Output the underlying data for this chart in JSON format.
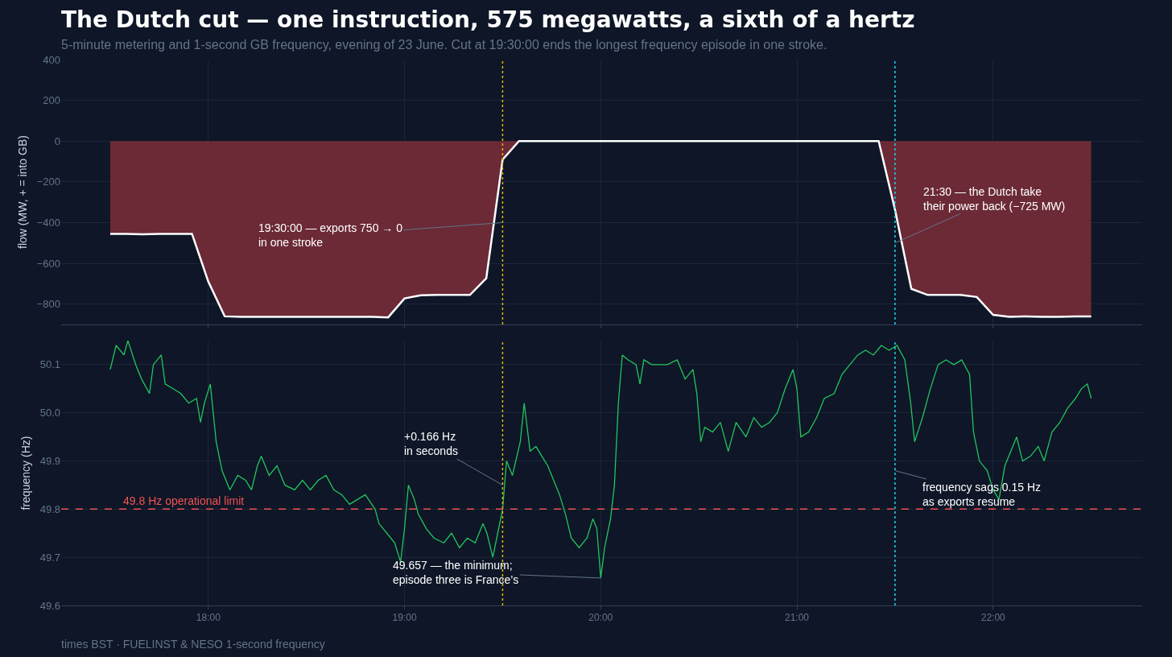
{
  "chart_data": [
    {
      "type": "area",
      "title": "The Dutch cut — one instruction, 575 megawatts, a sixth of a hertz",
      "subtitle": "5-minute metering and 1-second GB frequency, evening of 23 June. Cut at 19:30:00 ends the longest frequency episode in one stroke.",
      "ylabel": "flow (MW, + = into GB)",
      "x": [
        17.5,
        17.5833,
        17.6667,
        17.75,
        17.8333,
        17.9167,
        18.0,
        18.0833,
        18.1667,
        18.25,
        18.3333,
        18.4167,
        18.5,
        18.5833,
        18.6667,
        18.75,
        18.8333,
        18.9167,
        19.0,
        19.0833,
        19.1667,
        19.25,
        19.3333,
        19.4167,
        19.5,
        19.5833,
        19.6667,
        19.75,
        19.8333,
        19.9167,
        20.0,
        20.0833,
        20.1667,
        20.25,
        20.3333,
        20.4167,
        20.5,
        20.5833,
        20.6667,
        20.75,
        20.8333,
        20.9167,
        21.0,
        21.0833,
        21.1667,
        21.25,
        21.3333,
        21.4167,
        21.5,
        21.5833,
        21.6667,
        21.75,
        21.8333,
        21.9167,
        22.0,
        22.0833,
        22.1667,
        22.25,
        22.3333,
        22.4167,
        22.5
      ],
      "series": [
        {
          "color": "#6b2a36",
          "values": [
            -455,
            -455,
            -457,
            -455,
            -455,
            -455,
            -690,
            -860,
            -862,
            -862,
            -862,
            -862,
            -862,
            -862,
            -862,
            -862,
            -862,
            -865,
            -772,
            -757,
            -755,
            -755,
            -755,
            -673,
            -91,
            0,
            0,
            0,
            0,
            0,
            0,
            0,
            0,
            0,
            0,
            0,
            0,
            0,
            0,
            0,
            0,
            0,
            0,
            0,
            0,
            0,
            0,
            0,
            -337,
            -725,
            -755,
            -755,
            -755,
            -765,
            -853,
            -862,
            -860,
            -862,
            -862,
            -860,
            -860
          ]
        }
      ],
      "xlim": [
        17.25,
        22.76
      ],
      "xticks": [
        {
          "value": 18,
          "label": null
        },
        {
          "value": 19,
          "label": null
        },
        {
          "value": 20,
          "label": null
        },
        {
          "value": 21,
          "label": null
        },
        {
          "value": 22,
          "label": null
        }
      ],
      "ylim": [
        -900,
        400
      ],
      "yticks": [
        {
          "value": -800,
          "label": "−800"
        },
        {
          "value": -600,
          "label": "−600"
        },
        {
          "value": -400,
          "label": "−400"
        },
        {
          "value": -200,
          "label": "−200"
        },
        0,
        200,
        400
      ],
      "ref_lines": [
        {
          "axis": "x",
          "value": 19.5,
          "color": "#eab308",
          "line_style": "dotted"
        },
        {
          "axis": "x",
          "value": 21.5,
          "color": "#22d3ee",
          "line_style": "dotted"
        }
      ],
      "annotations": [
        {
          "text": "19:30:00 — exports 750 → 0\nin one stroke",
          "x": 19.5,
          "y": -400
        },
        {
          "text": "21:30 — the Dutch take\ntheir power back (−725 MW)",
          "x": 21.5,
          "y": -500
        }
      ],
      "grid": true,
      "tick_labels": "y"
    },
    {
      "type": "line",
      "ylabel": "frequency (Hz)",
      "x": [
        17.5,
        17.53,
        17.57,
        17.59,
        17.63,
        17.66,
        17.7,
        17.72,
        17.76,
        17.78,
        17.82,
        17.86,
        17.9,
        17.94,
        17.96,
        17.98,
        18.01,
        18.04,
        18.07,
        18.11,
        18.15,
        18.19,
        18.22,
        18.25,
        18.27,
        18.31,
        18.35,
        18.39,
        18.44,
        18.48,
        18.52,
        18.56,
        18.6,
        18.64,
        18.68,
        18.72,
        18.76,
        18.8,
        18.85,
        18.87,
        18.91,
        18.95,
        18.98,
        19.0,
        19.02,
        19.05,
        19.07,
        19.11,
        19.15,
        19.2,
        19.24,
        19.28,
        19.32,
        19.36,
        19.4,
        19.42,
        19.45,
        19.47,
        19.5,
        19.52,
        19.55,
        19.59,
        19.61,
        19.64,
        19.67,
        19.7,
        19.73,
        19.76,
        19.79,
        19.82,
        19.85,
        19.89,
        19.93,
        19.96,
        19.98,
        20.0,
        20.02,
        20.05,
        20.07,
        20.09,
        20.11,
        20.14,
        20.18,
        20.2,
        20.22,
        20.26,
        20.3,
        20.34,
        20.39,
        20.43,
        20.47,
        20.49,
        20.51,
        20.53,
        20.57,
        20.61,
        20.65,
        20.69,
        20.74,
        20.78,
        20.82,
        20.86,
        20.9,
        20.94,
        20.98,
        21.0,
        21.02,
        21.06,
        21.1,
        21.14,
        21.19,
        21.23,
        21.27,
        21.31,
        21.35,
        21.39,
        21.43,
        21.47,
        21.51,
        21.55,
        21.58,
        21.6,
        21.64,
        21.68,
        21.72,
        21.76,
        21.8,
        21.84,
        21.88,
        21.9,
        21.93,
        21.97,
        22.0,
        22.03,
        22.06,
        22.09,
        22.12,
        22.15,
        22.19,
        22.23,
        22.26,
        22.3,
        22.34,
        22.38,
        22.42,
        22.45,
        22.48,
        22.5
      ],
      "series": [
        {
          "color": "#22c55e",
          "values": [
            50.09,
            50.14,
            50.12,
            50.15,
            50.1,
            50.07,
            50.04,
            50.1,
            50.12,
            50.06,
            50.05,
            50.04,
            50.02,
            50.03,
            49.98,
            50.02,
            50.06,
            49.94,
            49.88,
            49.84,
            49.87,
            49.86,
            49.84,
            49.89,
            49.91,
            49.87,
            49.89,
            49.85,
            49.84,
            49.86,
            49.84,
            49.86,
            49.87,
            49.84,
            49.83,
            49.81,
            49.82,
            49.83,
            49.8,
            49.77,
            49.75,
            49.73,
            49.69,
            49.76,
            49.85,
            49.82,
            49.79,
            49.76,
            49.74,
            49.73,
            49.75,
            49.72,
            49.74,
            49.73,
            49.77,
            49.75,
            49.7,
            49.74,
            49.8,
            49.9,
            49.87,
            49.94,
            50.02,
            49.92,
            49.93,
            49.91,
            49.89,
            49.86,
            49.83,
            49.79,
            49.74,
            49.72,
            49.74,
            49.78,
            49.76,
            49.657,
            49.72,
            49.78,
            49.85,
            50.02,
            50.12,
            50.11,
            50.1,
            50.06,
            50.11,
            50.1,
            50.1,
            50.1,
            50.11,
            50.07,
            50.09,
            50.04,
            49.94,
            49.97,
            49.96,
            49.98,
            49.92,
            49.98,
            49.95,
            49.99,
            49.97,
            49.98,
            50.0,
            50.05,
            50.09,
            50.05,
            49.95,
            49.96,
            49.99,
            50.03,
            50.04,
            50.08,
            50.1,
            50.12,
            50.13,
            50.12,
            50.14,
            50.13,
            50.14,
            50.11,
            50.02,
            49.94,
            49.99,
            50.05,
            50.1,
            50.11,
            50.1,
            50.11,
            50.08,
            49.96,
            49.9,
            49.88,
            49.84,
            49.82,
            49.89,
            49.92,
            49.95,
            49.9,
            49.91,
            49.93,
            49.9,
            49.96,
            49.98,
            50.01,
            50.03,
            50.05,
            50.06,
            50.03
          ]
        }
      ],
      "xlim": [
        17.25,
        22.76
      ],
      "xticks": [
        {
          "value": 18,
          "label": "18:00"
        },
        {
          "value": 19,
          "label": "19:00"
        },
        {
          "value": 20,
          "label": "20:00"
        },
        {
          "value": 21,
          "label": "21:00"
        },
        {
          "value": 22,
          "label": "22:00"
        }
      ],
      "ylim": [
        49.6,
        50.15
      ],
      "yticks": [
        49.6,
        49.7,
        49.8,
        49.9,
        {
          "value": 50,
          "label": "50.0"
        },
        50.1
      ],
      "ref_lines": [
        {
          "axis": "y",
          "value": 49.8,
          "label": "49.8 Hz operational limit",
          "color": "#f05252",
          "line_style": "dashed"
        },
        {
          "axis": "x",
          "value": 19.5,
          "color": "#eab308",
          "line_style": "dotted"
        },
        {
          "axis": "x",
          "value": 21.5,
          "color": "#22d3ee",
          "line_style": "dotted"
        }
      ],
      "annotations": [
        {
          "text": "+0.166 Hz\nin seconds",
          "x": 19.5,
          "y": 49.85
        },
        {
          "text": "49.657 — the minimum;\nepisode three is France’s",
          "x": 20.0,
          "y": 49.657
        },
        {
          "text": "frequency sags 0.15 Hz\nas exports resume",
          "x": 21.5,
          "y": 49.88
        },
        "times BST · FUELINST & NESO 1-second frequency"
      ],
      "grid": true,
      "marker": "none",
      "line_style": "solid"
    }
  ]
}
